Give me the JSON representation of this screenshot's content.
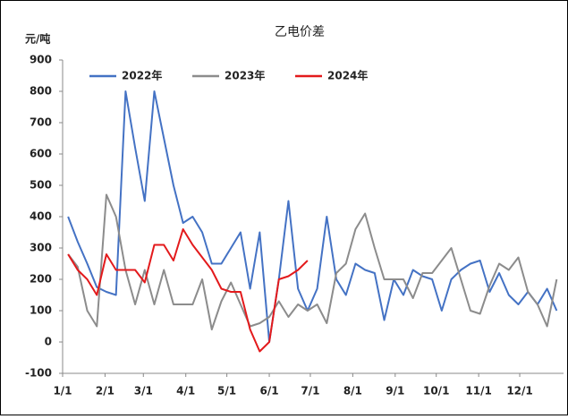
{
  "chart_data": {
    "type": "line",
    "title": "乙电价差",
    "y_label": "元/吨",
    "xlim": [
      0,
      366
    ],
    "xticks": [
      {
        "value": 0,
        "label": "1/1"
      },
      {
        "value": 31,
        "label": "2/1"
      },
      {
        "value": 59,
        "label": "3/1"
      },
      {
        "value": 90,
        "label": "4/1"
      },
      {
        "value": 120,
        "label": "5/1"
      },
      {
        "value": 151,
        "label": "6/1"
      },
      {
        "value": 181,
        "label": "7/1"
      },
      {
        "value": 212,
        "label": "8/1"
      },
      {
        "value": 243,
        "label": "9/1"
      },
      {
        "value": 273,
        "label": "10/1"
      },
      {
        "value": 304,
        "label": "11/1"
      },
      {
        "value": 334,
        "label": "12/1"
      }
    ],
    "ylim": [
      -100,
      900
    ],
    "yticks": [
      -100,
      0,
      100,
      200,
      300,
      400,
      500,
      600,
      700,
      800,
      900
    ],
    "legend": "top-left",
    "series": [
      {
        "name": "2022年",
        "color": "#4472c4",
        "x": [
          4,
          11,
          18,
          25,
          32,
          39,
          46,
          53,
          60,
          67,
          74,
          81,
          88,
          95,
          102,
          109,
          116,
          123,
          130,
          137,
          144,
          151,
          158,
          165,
          172,
          179,
          186,
          193,
          200,
          207,
          214,
          221,
          228,
          235,
          242,
          249,
          256,
          263,
          270,
          277,
          284,
          291,
          298,
          305,
          312,
          319,
          326,
          333,
          340,
          347,
          354,
          361
        ],
        "values": [
          400,
          320,
          250,
          175,
          160,
          150,
          800,
          620,
          450,
          800,
          650,
          500,
          380,
          400,
          350,
          250,
          250,
          300,
          350,
          170,
          350,
          0,
          200,
          450,
          170,
          100,
          170,
          400,
          200,
          150,
          250,
          230,
          220,
          70,
          200,
          150,
          230,
          210,
          200,
          100,
          200,
          230,
          250,
          260,
          160,
          220,
          150,
          120,
          160,
          120,
          170,
          100
        ]
      },
      {
        "name": "2023年",
        "color": "#8c8c8c",
        "x": [
          4,
          11,
          18,
          25,
          32,
          39,
          46,
          53,
          60,
          67,
          74,
          81,
          88,
          95,
          102,
          109,
          116,
          123,
          130,
          137,
          144,
          151,
          158,
          165,
          172,
          179,
          186,
          193,
          200,
          207,
          214,
          221,
          228,
          235,
          242,
          249,
          256,
          263,
          270,
          277,
          284,
          291,
          298,
          305,
          312,
          319,
          326,
          333,
          340,
          347,
          354,
          361
        ],
        "values": [
          280,
          240,
          100,
          50,
          470,
          400,
          230,
          120,
          230,
          120,
          230,
          120,
          120,
          120,
          200,
          40,
          130,
          190,
          120,
          50,
          60,
          80,
          130,
          80,
          120,
          100,
          120,
          60,
          220,
          250,
          360,
          410,
          300,
          200,
          200,
          200,
          140,
          220,
          220,
          260,
          300,
          200,
          100,
          90,
          180,
          250,
          230,
          270,
          160,
          120,
          50,
          200
        ]
      },
      {
        "name": "2024年",
        "color": "#e31a1c",
        "x": [
          4,
          11,
          18,
          25,
          32,
          39,
          46,
          53,
          60,
          67,
          74,
          81,
          88,
          95,
          102,
          109,
          116,
          123,
          130,
          137,
          144,
          151,
          158,
          165,
          172,
          179
        ],
        "values": [
          280,
          230,
          200,
          150,
          280,
          230,
          230,
          230,
          190,
          310,
          310,
          260,
          360,
          310,
          270,
          230,
          170,
          160,
          160,
          40,
          -30,
          0,
          200,
          210,
          230,
          260
        ]
      }
    ]
  }
}
